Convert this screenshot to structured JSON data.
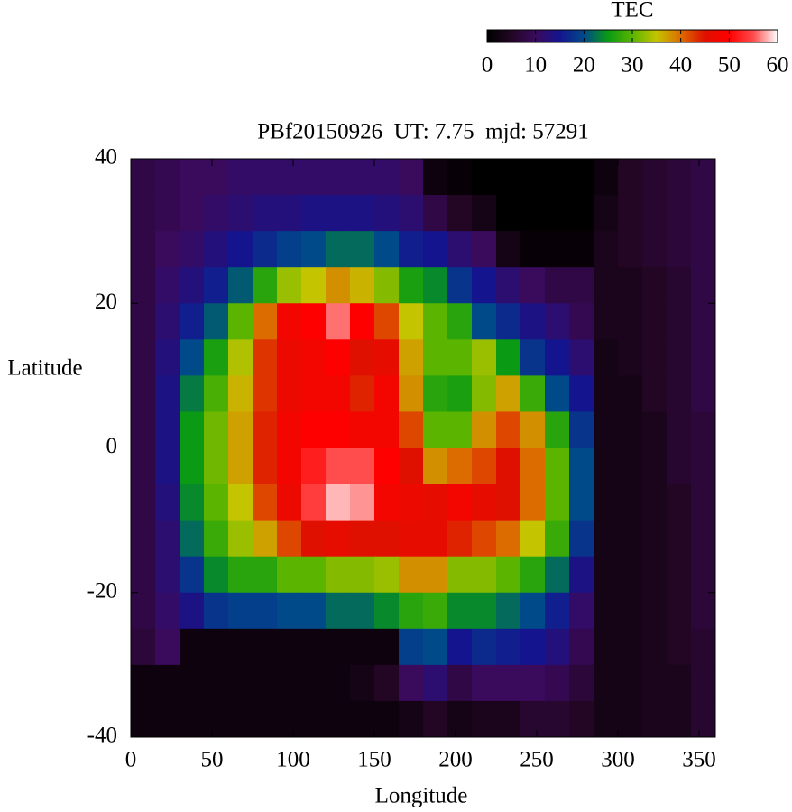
{
  "chart_data": {
    "type": "heatmap",
    "title": "PBf20150926  UT: 7.75  mjd: 57291",
    "xlabel": "Longitude",
    "ylabel": "Latitude",
    "colorbar_title": "TEC",
    "x": [
      7.5,
      22.5,
      37.5,
      52.5,
      67.5,
      82.5,
      97.5,
      112.5,
      127.5,
      142.5,
      157.5,
      172.5,
      187.5,
      202.5,
      217.5,
      232.5,
      247.5,
      262.5,
      277.5,
      292.5,
      307.5,
      322.5,
      337.5,
      352.5
    ],
    "y": [
      37.5,
      32.5,
      27.5,
      22.5,
      17.5,
      12.5,
      7.5,
      2.5,
      -2.5,
      -7.5,
      -12.5,
      -17.5,
      -22.5,
      -27.5,
      -32.5,
      -37.5
    ],
    "z": [
      [
        8,
        9,
        10,
        10,
        11,
        11,
        11,
        11,
        11,
        11,
        11,
        10,
        2,
        1,
        0,
        0,
        0,
        0,
        0,
        2,
        5,
        6,
        7,
        8
      ],
      [
        8,
        9,
        10,
        11,
        12,
        13,
        13,
        14,
        14,
        14,
        13,
        12,
        8,
        5,
        3,
        0,
        0,
        0,
        0,
        3,
        5,
        6,
        7,
        8
      ],
      [
        8,
        10,
        11,
        13,
        15,
        17,
        19,
        20,
        22,
        22,
        20,
        16,
        15,
        12,
        10,
        3,
        1,
        1,
        1,
        4,
        5,
        6,
        7,
        8
      ],
      [
        8,
        11,
        13,
        16,
        21,
        27,
        33,
        35,
        38,
        36,
        32,
        26,
        24,
        18,
        15,
        12,
        10,
        8,
        8,
        4,
        4,
        5,
        6,
        8
      ],
      [
        8,
        12,
        16,
        21,
        30,
        40,
        48,
        50,
        56,
        50,
        42,
        35,
        30,
        27,
        20,
        17,
        14,
        12,
        9,
        4,
        4,
        5,
        6,
        8
      ],
      [
        8,
        13,
        20,
        26,
        34,
        43,
        47,
        48,
        50,
        45,
        46,
        37,
        30,
        30,
        33,
        25,
        18,
        15,
        12,
        3,
        4,
        5,
        6,
        8
      ],
      [
        8,
        14,
        23,
        29,
        36,
        43,
        47,
        48,
        48,
        44,
        48,
        38,
        27,
        26,
        32,
        37,
        28,
        20,
        15,
        3,
        3,
        5,
        6,
        8
      ],
      [
        8,
        14,
        25,
        31,
        37,
        44,
        48,
        50,
        50,
        48,
        48,
        42,
        30,
        30,
        38,
        42,
        38,
        27,
        18,
        3,
        3,
        4,
        6,
        7
      ],
      [
        8,
        14,
        25,
        31,
        37,
        44,
        48,
        52,
        55,
        55,
        50,
        45,
        38,
        40,
        42,
        45,
        40,
        30,
        20,
        3,
        3,
        4,
        6,
        7
      ],
      [
        8,
        13,
        24,
        30,
        35,
        42,
        47,
        54,
        58,
        57,
        48,
        47,
        46,
        48,
        46,
        45,
        40,
        30,
        20,
        3,
        3,
        4,
        5,
        7
      ],
      [
        8,
        12,
        22,
        28,
        33,
        37,
        42,
        45,
        46,
        45,
        45,
        46,
        46,
        44,
        42,
        40,
        35,
        28,
        18,
        3,
        3,
        4,
        5,
        7
      ],
      [
        8,
        12,
        18,
        24,
        27,
        27,
        30,
        30,
        32,
        32,
        33,
        38,
        38,
        32,
        32,
        30,
        27,
        22,
        14,
        3,
        3,
        4,
        5,
        7
      ],
      [
        8,
        11,
        14,
        18,
        19,
        19,
        20,
        20,
        22,
        22,
        24,
        27,
        28,
        24,
        24,
        22,
        20,
        16,
        11,
        3,
        3,
        4,
        5,
        7
      ],
      [
        7,
        10,
        2,
        2,
        2,
        2,
        2,
        2,
        2,
        2,
        2,
        19,
        20,
        15,
        17,
        16,
        15,
        13,
        9,
        3,
        3,
        4,
        5,
        6
      ],
      [
        2,
        2,
        2,
        2,
        2,
        2,
        2,
        2,
        2,
        3,
        5,
        10,
        12,
        8,
        10,
        10,
        10,
        9,
        7,
        3,
        3,
        4,
        4,
        6
      ],
      [
        2,
        2,
        2,
        2,
        2,
        2,
        2,
        2,
        2,
        2,
        2,
        3,
        5,
        3,
        4,
        4,
        6,
        6,
        5,
        3,
        3,
        4,
        4,
        6
      ]
    ],
    "colorscale": [
      "#000000",
      "#220624",
      "#3a0a5c",
      "#14148e",
      "#004a8a",
      "#0a9a14",
      "#5ab400",
      "#c4c400",
      "#dc6c00",
      "#e01000",
      "#ff0000",
      "#ff4c4c",
      "#ffffff"
    ],
    "zlim": [
      0,
      60
    ],
    "zticks": [
      0,
      10,
      20,
      30,
      40,
      50,
      60
    ],
    "xlim": [
      0,
      360
    ],
    "xticks": [
      0,
      50,
      100,
      150,
      200,
      250,
      300,
      350
    ],
    "ylim": [
      -40,
      40
    ],
    "yticks": [
      -40,
      -20,
      0,
      20,
      40
    ]
  }
}
